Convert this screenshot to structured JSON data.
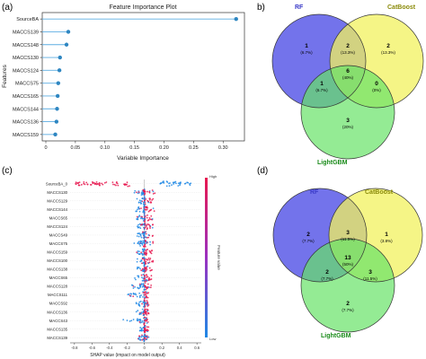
{
  "panels": {
    "a": "(a)",
    "b": "b)",
    "c": "(c)",
    "d": "(d)"
  },
  "colors": {
    "lollipop": "#2e86c1",
    "stem": "#5dade2",
    "rf": "#6b6bea",
    "catboost": "#f2f25e",
    "lightgbm": "#66e366",
    "venn_overlap": "#b5b061",
    "venn_center": "#57a86a",
    "shap_high": "#e8184f",
    "shap_low": "#1e88e5",
    "label_blue": "#3939c8",
    "label_olive": "#8b8b0a",
    "label_green": "#188a18"
  },
  "chart_data": [
    {
      "type": "lollipop",
      "title": "Feature Importance Plot",
      "xlabel": "Variable Importance",
      "ylabel": "Features",
      "xlim": [
        0,
        0.33
      ],
      "xticks": [
        "0",
        "0.05",
        "0.10",
        "0.15",
        "0.20",
        "0.25",
        "0.30"
      ],
      "categories": [
        "SourceBA",
        "MACCS139",
        "MACCS148",
        "MACCS130",
        "MACCS124",
        "MACCS75",
        "MACCS165",
        "MACCS144",
        "MACCS136",
        "MACCS159"
      ],
      "values": [
        0.322,
        0.038,
        0.035,
        0.024,
        0.023,
        0.021,
        0.02,
        0.019,
        0.018,
        0.016
      ]
    },
    {
      "type": "venn",
      "sets": [
        "RF",
        "CatBoost",
        "LightGBM"
      ],
      "regions": {
        "rf_only": {
          "count": "1",
          "pct": "(6.7%)"
        },
        "cat_only": {
          "count": "2",
          "pct": "(13.3%)"
        },
        "lgb_only": {
          "count": "3",
          "pct": "(20%)"
        },
        "rf_cat": {
          "count": "2",
          "pct": "(13.3%)"
        },
        "rf_lgb": {
          "count": "1",
          "pct": "(6.7%)"
        },
        "cat_lgb": {
          "count": "0",
          "pct": "(0%)"
        },
        "all": {
          "count": "6",
          "pct": "(40%)"
        }
      }
    },
    {
      "type": "beeswarm",
      "xlabel": "SHAP value (impact on model output)",
      "colorbar_label": "Feature value",
      "colorbar_high": "High",
      "colorbar_low": "Low",
      "xlim": [
        -0.85,
        0.65
      ],
      "xticks": [
        "-0.8",
        "-0.6",
        "-0.4",
        "-0.2",
        "0",
        "0.2",
        "0.4",
        "0.6"
      ],
      "xtick_values": [
        -0.8,
        -0.6,
        -0.4,
        -0.2,
        0,
        0.2,
        0.4,
        0.6
      ],
      "features": [
        "SourceBA_0",
        "MACCS130",
        "MACCS129",
        "MACCS144",
        "MACCS65",
        "MACCS124",
        "MACCS49",
        "MACCS75",
        "MACCS159",
        "MACCS100",
        "MACCS138",
        "MACCS65",
        "MACCS128",
        "MACCS111",
        "MACCS92",
        "MACCS136",
        "MACCS43",
        "MACCS135",
        "MACCS139"
      ],
      "spread": [
        [
          -0.8,
          0.55
        ],
        [
          -0.12,
          0.12
        ],
        [
          -0.1,
          0.13
        ],
        [
          -0.1,
          0.12
        ],
        [
          -0.1,
          0.1
        ],
        [
          -0.1,
          0.11
        ],
        [
          -0.1,
          0.1
        ],
        [
          -0.12,
          0.1
        ],
        [
          -0.1,
          0.09
        ],
        [
          -0.1,
          0.1
        ],
        [
          -0.1,
          0.09
        ],
        [
          -0.12,
          0.08
        ],
        [
          -0.15,
          0.08
        ],
        [
          -0.2,
          0.06
        ],
        [
          -0.12,
          0.06
        ],
        [
          -0.1,
          0.05
        ],
        [
          -0.25,
          0.05
        ],
        [
          -0.08,
          0.05
        ],
        [
          -0.08,
          0.05
        ]
      ]
    },
    {
      "type": "venn",
      "sets": [
        "RF",
        "CatBoost",
        "LightGBM"
      ],
      "regions": {
        "rf_only": {
          "count": "2",
          "pct": "(7.7%)"
        },
        "cat_only": {
          "count": "1",
          "pct": "(3.8%)"
        },
        "lgb_only": {
          "count": "2",
          "pct": "(7.7%)"
        },
        "rf_cat": {
          "count": "3",
          "pct": "(11.5%)"
        },
        "rf_lgb": {
          "count": "2",
          "pct": "(7.7%)"
        },
        "cat_lgb": {
          "count": "3",
          "pct": "(11.5%)"
        },
        "all": {
          "count": "13",
          "pct": "(50%)"
        }
      }
    }
  ]
}
